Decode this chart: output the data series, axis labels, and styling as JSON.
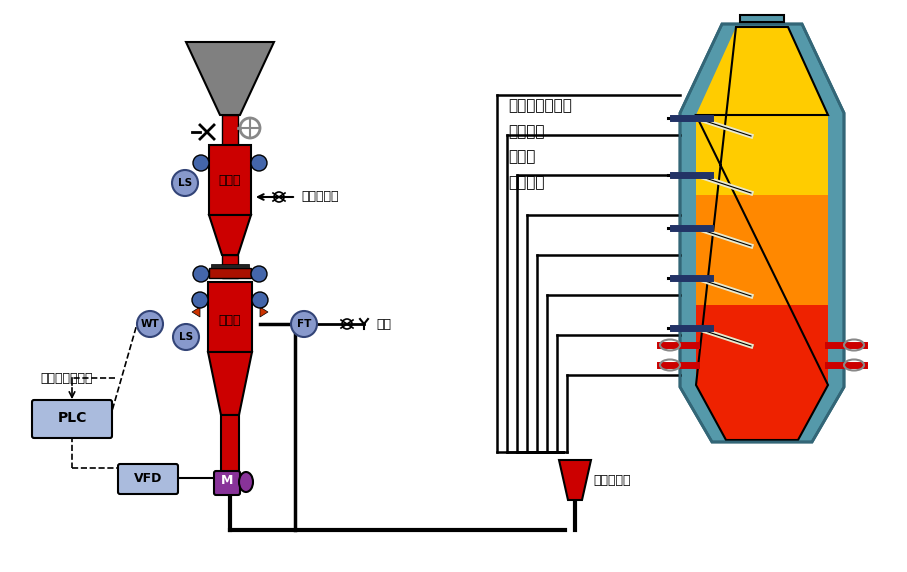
{
  "bg_color": "#ffffff",
  "title": "",
  "text_labels": {
    "shouke_tank": "收料罐",
    "penchu_tank": "喷吹罐",
    "ls1": "LS",
    "ls2": "LS",
    "wt": "WT",
    "ft": "FT",
    "plc": "PLC",
    "vfd": "VFD",
    "m": "M",
    "liuhua": "流化加压气",
    "qiyuan": "气源",
    "geiliao": "给料量连续可调",
    "guanlu": "管路分配器",
    "furnace_text": "循环流化床锅炉\n炼铁高炉\n熔炼炉\n炼钢电炉"
  },
  "colors": {
    "red": "#cc0000",
    "dark_red": "#990000",
    "gray_hopper": "#808080",
    "blue_valve": "#4466aa",
    "blue_circle": "#8899cc",
    "purple_motor": "#883399",
    "plc_box": "#aabbdd",
    "vfd_box": "#aabbdd",
    "furnace_outer": "#5599aa",
    "furnace_yellow": "#ffcc00",
    "furnace_orange": "#ff8800",
    "furnace_red": "#ee2200",
    "pipe_color": "#111111",
    "dark_blue_bar": "#223366",
    "arrow_color": "#333333"
  }
}
